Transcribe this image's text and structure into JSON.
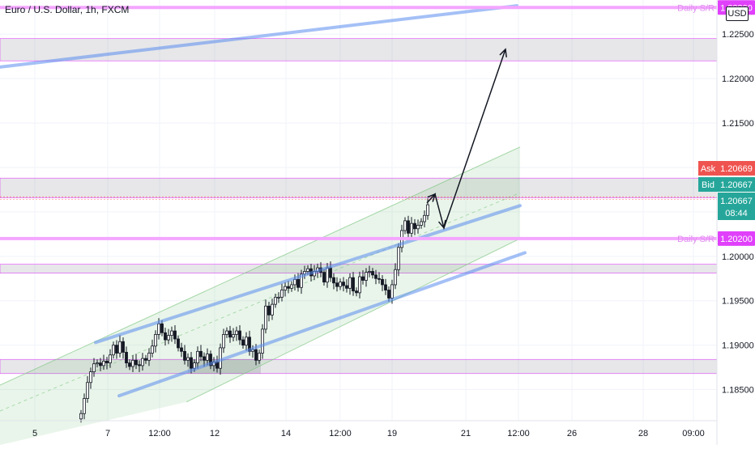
{
  "header": {
    "title": "Euro / U.S. Dollar, 1h, FXCM",
    "currency": "USD"
  },
  "price_tags": {
    "ask_label": "Ask",
    "ask_value": "1.20669",
    "ask_color": "#ef5350",
    "bid_label": "Bid",
    "bid_value": "1.20667",
    "bid_color": "#26a69a",
    "last_value": "1.20667",
    "countdown": "08:44",
    "last_color": "#26a69a"
  },
  "sr_labels": [
    {
      "text": "Daily S/R",
      "value": "1.22800"
    },
    {
      "text": "Daily S/R",
      "value": "1.20200"
    }
  ],
  "chart_data": {
    "type": "candlestick",
    "title": "Euro / U.S. Dollar, 1h, FXCM",
    "y_axis": {
      "ticks": [
        "1.22500",
        "1.22000",
        "1.21500",
        "1.21000",
        "1.20500",
        "1.20000",
        "1.19500",
        "1.19000",
        "1.18500"
      ],
      "range": [
        1.1815,
        1.2283
      ]
    },
    "x_axis": {
      "ticks": [
        "5",
        "7",
        "12:00",
        "12",
        "14",
        "12:00",
        "19",
        "21",
        "12:00",
        "26",
        "28",
        "09:00"
      ]
    },
    "horizontal_levels": [
      {
        "name": "Daily S/R",
        "value": 1.228,
        "color": "#e040fb"
      },
      {
        "name": "Daily S/R",
        "value": 1.202,
        "color": "#e040fb"
      }
    ],
    "zones": [
      {
        "from": 1.222,
        "to": 1.2245
      },
      {
        "from": 1.2066,
        "to": 1.2088
      },
      {
        "from": 1.1981,
        "to": 1.1991
      },
      {
        "from": 1.1868,
        "to": 1.1884
      }
    ],
    "trendlines": [
      {
        "from": [
          0,
          1.2213
        ],
        "to": [
          638,
          1.2282
        ]
      },
      {
        "from": [
          118,
          1.1903
        ],
        "to": [
          642,
          1.2057
        ]
      },
      {
        "from": [
          147,
          1.1843
        ],
        "to": [
          648,
          1.2004
        ]
      }
    ],
    "channel": {
      "upper": [
        [
          0,
          1.1855
        ],
        [
          642,
          1.2123
        ]
      ],
      "lower": [
        [
          230,
          1.1836
        ],
        [
          642,
          1.202
        ]
      ]
    },
    "projection_path": [
      [
        527,
        1.206
      ],
      [
        537,
        1.207
      ],
      [
        548,
        1.2032
      ],
      [
        624,
        1.2233
      ]
    ],
    "close_series": [
      [
        100,
        1.1823
      ],
      [
        104,
        1.184
      ],
      [
        108,
        1.1858
      ],
      [
        112,
        1.187
      ],
      [
        116,
        1.1879
      ],
      [
        120,
        1.188
      ],
      [
        124,
        1.1877
      ],
      [
        128,
        1.1882
      ],
      [
        132,
        1.188
      ],
      [
        136,
        1.1889
      ],
      [
        140,
        1.19
      ],
      [
        144,
        1.1891
      ],
      [
        148,
        1.1904
      ],
      [
        152,
        1.1892
      ],
      [
        156,
        1.188
      ],
      [
        160,
        1.1876
      ],
      [
        164,
        1.1883
      ],
      [
        168,
        1.1878
      ],
      [
        172,
        1.1877
      ],
      [
        176,
        1.1885
      ],
      [
        180,
        1.1883
      ],
      [
        184,
        1.1891
      ],
      [
        188,
        1.1899
      ],
      [
        192,
        1.1912
      ],
      [
        196,
        1.1924
      ],
      [
        200,
        1.1914
      ],
      [
        204,
        1.1906
      ],
      [
        208,
        1.1911
      ],
      [
        212,
        1.1916
      ],
      [
        216,
        1.1907
      ],
      [
        220,
        1.1897
      ],
      [
        224,
        1.1893
      ],
      [
        228,
        1.1883
      ],
      [
        232,
        1.1886
      ],
      [
        236,
        1.1874
      ],
      [
        240,
        1.188
      ],
      [
        244,
        1.1893
      ],
      [
        248,
        1.1887
      ],
      [
        252,
        1.1883
      ],
      [
        256,
        1.189
      ],
      [
        260,
        1.1877
      ],
      [
        264,
        1.1881
      ],
      [
        268,
        1.1874
      ],
      [
        272,
        1.1897
      ],
      [
        276,
        1.1912
      ],
      [
        280,
        1.1916
      ],
      [
        284,
        1.1909
      ],
      [
        288,
        1.1912
      ],
      [
        292,
        1.1916
      ],
      [
        296,
        1.1906
      ],
      [
        300,
        1.19
      ],
      [
        304,
        1.1909
      ],
      [
        308,
        1.1893
      ],
      [
        312,
        1.1895
      ],
      [
        316,
        1.1883
      ],
      [
        320,
        1.1891
      ],
      [
        324,
        1.1918
      ],
      [
        328,
        1.1944
      ],
      [
        332,
        1.1934
      ],
      [
        336,
        1.1946
      ],
      [
        340,
        1.1954
      ],
      [
        344,
        1.1954
      ],
      [
        348,
        1.1962
      ],
      [
        352,
        1.1966
      ],
      [
        356,
        1.1964
      ],
      [
        360,
        1.1968
      ],
      [
        364,
        1.1974
      ],
      [
        368,
        1.1965
      ],
      [
        372,
        1.198
      ],
      [
        376,
        1.1983
      ],
      [
        380,
        1.1986
      ],
      [
        384,
        1.1978
      ],
      [
        388,
        1.1983
      ],
      [
        392,
        1.1987
      ],
      [
        396,
        1.1982
      ],
      [
        400,
        1.1971
      ],
      [
        404,
        1.1987
      ],
      [
        408,
        1.1976
      ],
      [
        412,
        1.197
      ],
      [
        416,
        1.1966
      ],
      [
        420,
        1.1971
      ],
      [
        424,
        1.1967
      ],
      [
        428,
        1.1964
      ],
      [
        432,
        1.1976
      ],
      [
        436,
        1.1961
      ],
      [
        440,
        1.1959
      ],
      [
        444,
        1.1977
      ],
      [
        448,
        1.1973
      ],
      [
        452,
        1.1982
      ],
      [
        456,
        1.1983
      ],
      [
        460,
        1.1979
      ],
      [
        464,
        1.1975
      ],
      [
        468,
        1.1974
      ],
      [
        472,
        1.1968
      ],
      [
        476,
        1.1962
      ],
      [
        480,
        1.1953
      ],
      [
        484,
        1.1968
      ],
      [
        488,
        1.1985
      ],
      [
        492,
        1.201
      ],
      [
        496,
        1.2029
      ],
      [
        500,
        1.204
      ],
      [
        504,
        1.2026
      ],
      [
        508,
        1.2037
      ],
      [
        512,
        1.2031
      ],
      [
        516,
        1.2035
      ],
      [
        520,
        1.2039
      ],
      [
        524,
        1.2046
      ],
      [
        528,
        1.2058
      ]
    ]
  }
}
